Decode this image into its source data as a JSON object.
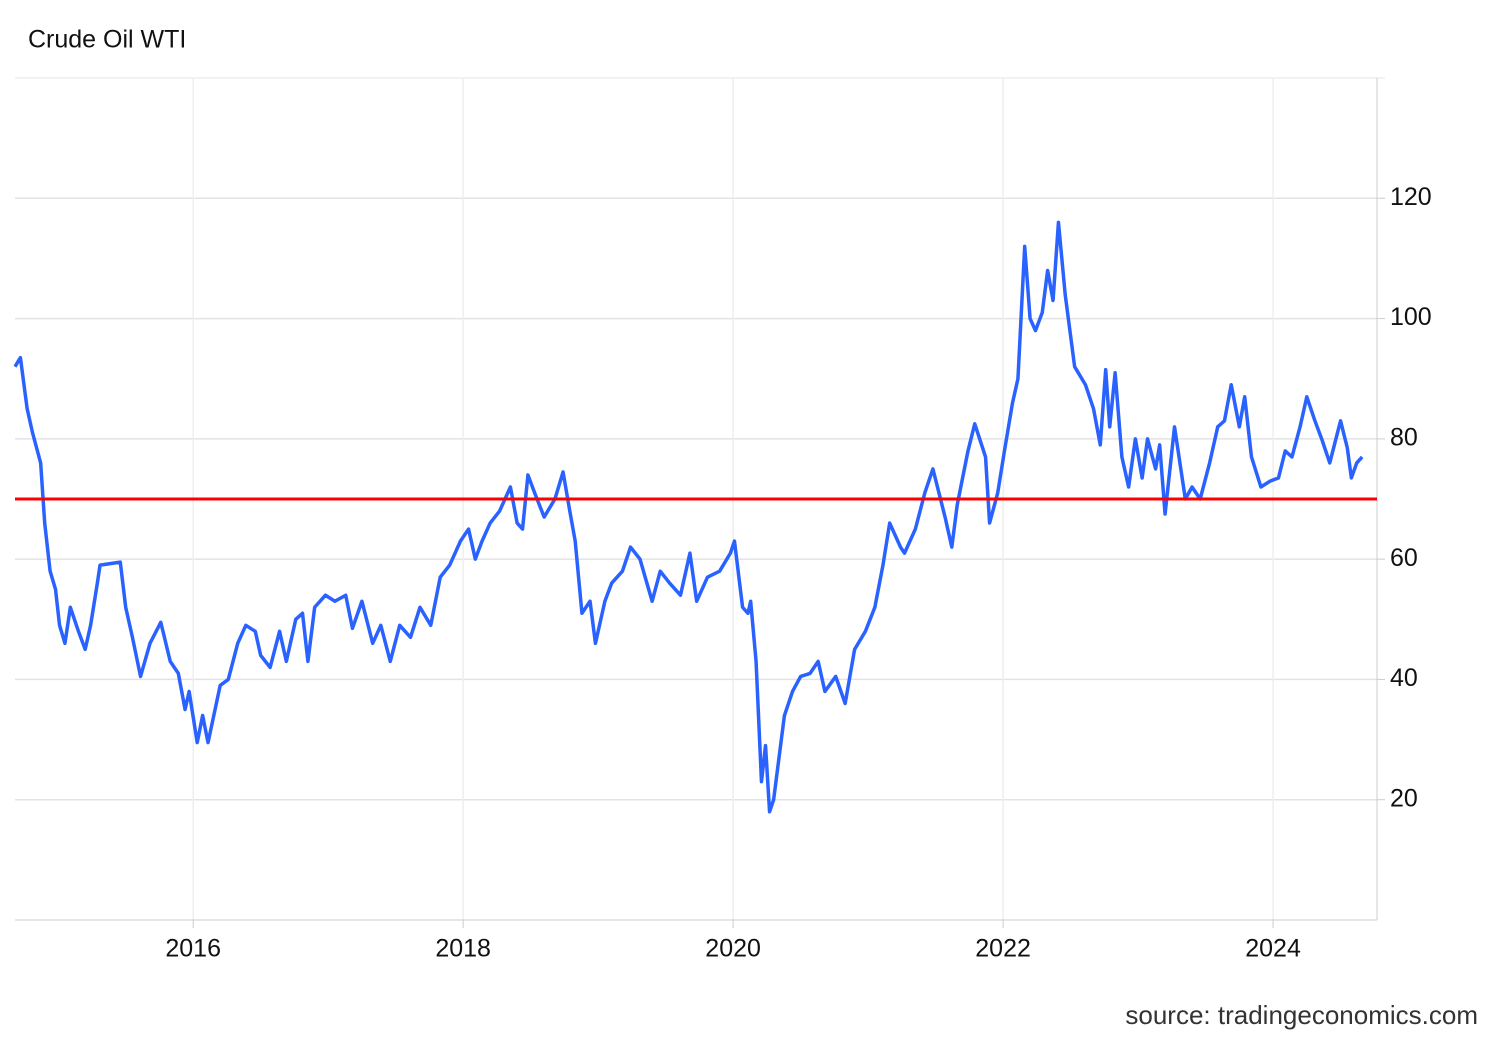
{
  "chart_data": {
    "type": "line",
    "title": "Crude Oil WTI",
    "source": "source: tradingeconomics.com",
    "x": [
      2014.68,
      2014.72,
      2014.77,
      2014.81,
      2014.87,
      2014.9,
      2014.94,
      2014.98,
      2015.01,
      2015.05,
      2015.09,
      2015.15,
      2015.2,
      2015.24,
      2015.29,
      2015.31,
      2015.46,
      2015.5,
      2015.55,
      2015.61,
      2015.68,
      2015.76,
      2015.83,
      2015.89,
      2015.94,
      2015.97,
      2016.03,
      2016.07,
      2016.11,
      2016.2,
      2016.26,
      2016.33,
      2016.39,
      2016.46,
      2016.5,
      2016.57,
      2016.64,
      2016.69,
      2016.76,
      2016.81,
      2016.85,
      2016.9,
      2016.98,
      2017.05,
      2017.13,
      2017.18,
      2017.25,
      2017.33,
      2017.39,
      2017.46,
      2017.53,
      2017.61,
      2017.68,
      2017.76,
      2017.83,
      2017.9,
      2017.98,
      2018.04,
      2018.09,
      2018.14,
      2018.2,
      2018.27,
      2018.35,
      2018.4,
      2018.44,
      2018.48,
      2018.53,
      2018.6,
      2018.68,
      2018.74,
      2018.79,
      2018.83,
      2018.88,
      2018.94,
      2018.98,
      2019.05,
      2019.1,
      2019.18,
      2019.24,
      2019.31,
      2019.4,
      2019.46,
      2019.53,
      2019.61,
      2019.68,
      2019.73,
      2019.81,
      2019.9,
      2019.98,
      2020.01,
      2020.07,
      2020.11,
      2020.13,
      2020.17,
      2020.21,
      2020.24,
      2020.27,
      2020.3,
      2020.38,
      2020.44,
      2020.5,
      2020.57,
      2020.63,
      2020.68,
      2020.76,
      2020.83,
      2020.9,
      2020.98,
      2021.05,
      2021.11,
      2021.16,
      2021.24,
      2021.27,
      2021.35,
      2021.42,
      2021.48,
      2021.57,
      2021.62,
      2021.66,
      2021.74,
      2021.79,
      2021.87,
      2021.9,
      2021.96,
      2022.01,
      2022.07,
      2022.11,
      2022.16,
      2022.2,
      2022.24,
      2022.29,
      2022.33,
      2022.37,
      2022.41,
      2022.46,
      2022.53,
      2022.61,
      2022.67,
      2022.72,
      2022.76,
      2022.79,
      2022.83,
      2022.88,
      2022.93,
      2022.98,
      2023.03,
      2023.07,
      2023.13,
      2023.16,
      2023.2,
      2023.27,
      2023.35,
      2023.4,
      2023.46,
      2023.53,
      2023.59,
      2023.64,
      2023.69,
      2023.75,
      2023.79,
      2023.84,
      2023.91,
      2023.98,
      2024.04,
      2024.09,
      2024.14,
      2024.2,
      2024.25,
      2024.31,
      2024.36,
      2024.42,
      2024.5,
      2024.55,
      2024.58,
      2024.62,
      2024.66
    ],
    "series": [
      {
        "name": "Crude Oil WTI",
        "color": "#2962ff",
        "values": [
          92,
          93.5,
          85,
          81,
          76,
          66,
          58,
          55,
          49,
          46,
          52,
          48,
          45,
          49,
          56,
          59,
          59.5,
          52,
          47,
          40.5,
          46,
          49.5,
          43,
          41,
          35,
          38,
          29.5,
          34,
          29.5,
          39,
          40,
          46,
          49,
          48,
          44,
          42,
          48,
          43,
          50,
          51,
          43,
          52,
          54,
          53,
          54,
          48.5,
          53,
          46,
          49,
          43,
          49,
          47,
          52,
          49,
          57,
          59,
          63,
          65,
          60,
          63,
          66,
          68,
          72,
          66,
          65,
          74,
          71,
          67,
          70,
          74.5,
          68,
          63,
          51,
          53,
          46,
          53,
          56,
          58,
          62,
          60,
          53,
          58,
          56,
          54,
          61,
          53,
          57,
          58,
          61,
          63,
          52,
          51,
          53,
          43,
          23,
          29,
          18,
          20,
          34,
          38,
          40.5,
          41,
          43,
          38,
          40.5,
          36,
          45,
          48,
          52,
          59,
          66,
          62,
          61,
          65,
          71,
          75,
          67,
          62,
          69,
          78,
          82.5,
          77,
          66,
          71,
          78,
          86,
          90,
          112,
          100,
          98,
          101,
          108,
          103,
          116,
          104,
          92,
          89,
          85,
          79,
          91.5,
          82,
          91,
          77,
          72,
          80,
          73.5,
          80,
          75,
          79,
          67.5,
          82,
          70,
          72,
          70,
          76,
          82,
          83,
          89,
          82,
          87,
          77,
          72,
          73,
          73.5,
          78,
          77,
          82,
          87,
          83,
          80,
          76,
          83,
          78.5,
          73.5,
          76,
          77
        ]
      }
    ],
    "reference_line": {
      "value": 70,
      "color": "#ff0000"
    },
    "xlim": [
      2014.68,
      2024.77
    ],
    "xticks": [
      2016,
      2018,
      2020,
      2022,
      2024
    ],
    "ylim": [
      0,
      140
    ],
    "yticks": [
      20,
      40,
      60,
      80,
      100,
      120
    ],
    "grid": true
  }
}
